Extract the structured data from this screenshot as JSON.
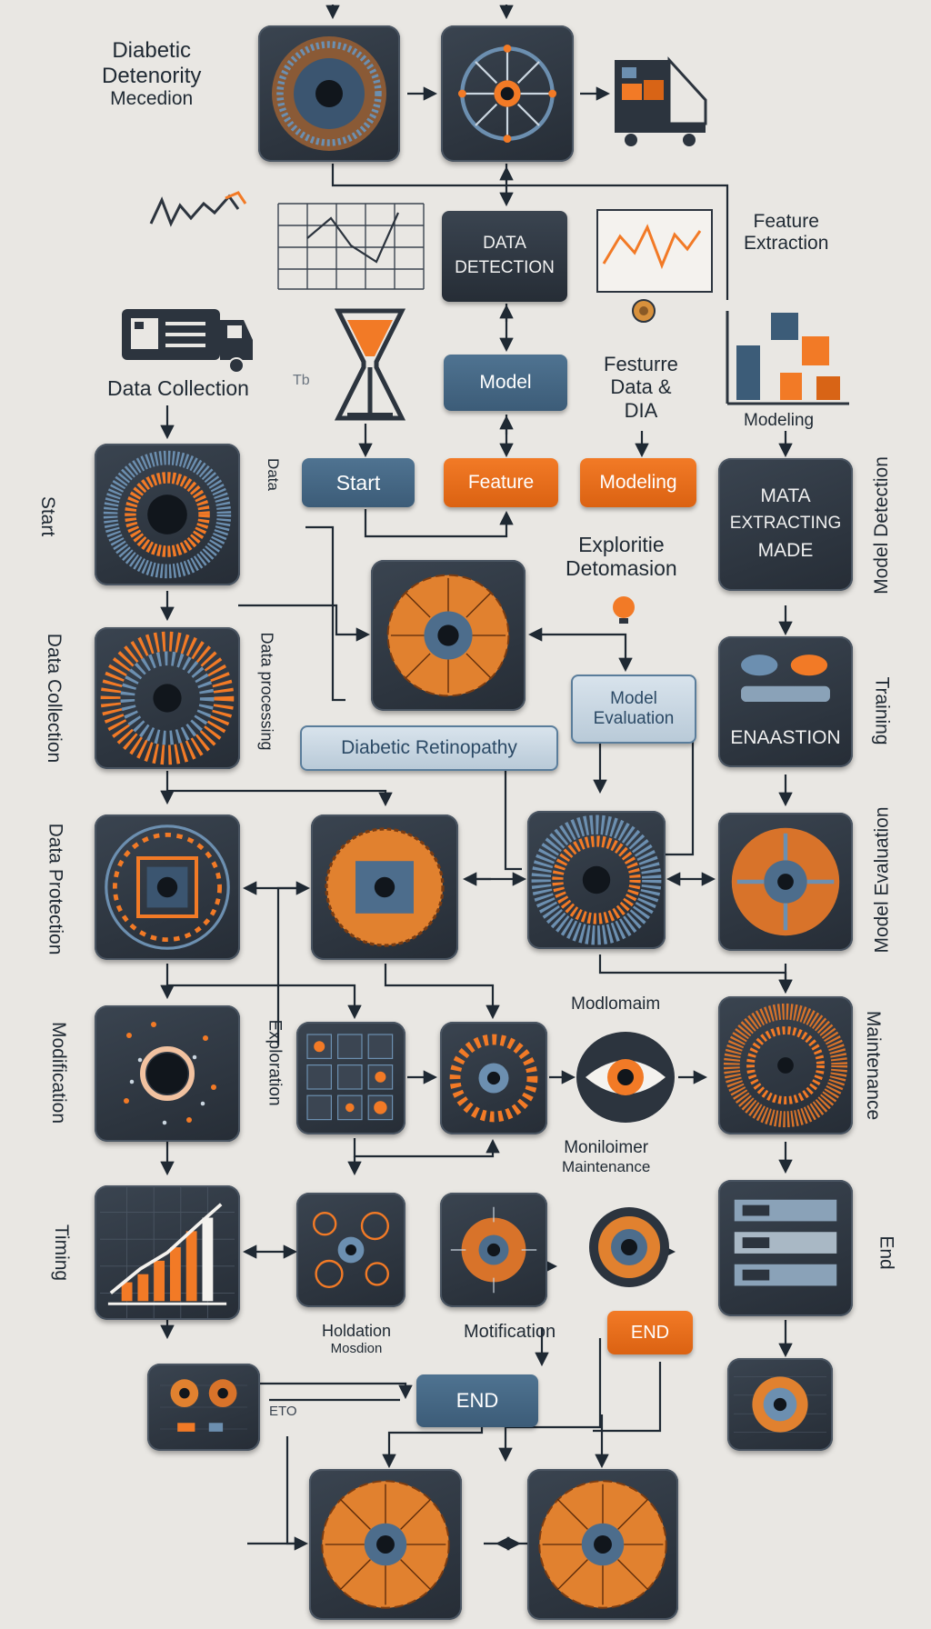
{
  "title": {
    "line1": "Diabetic",
    "line2": "Detenority",
    "line3": "Mecedion"
  },
  "labels": {
    "feature_extraction_l1": "Feature",
    "feature_extraction_l2": "Extraction",
    "data_collection": "Data Collection",
    "feature_data_l1": "Festurre",
    "feature_data_l2": "Data &",
    "feature_data_l3": "DIA",
    "modeling_small": "Modeling",
    "exploratory_l1": "Exploritie",
    "exploratory_l2": "Detomasion",
    "modl_label": "Modlomaim",
    "monitoring_l1": "Moniloimer",
    "monitoring_l2": "Maintenance",
    "holdion_l1": "Holdation",
    "holdion_l2": "Mosdion",
    "modification": "Motification",
    "small_note": "ETO",
    "small_note2": "Tb"
  },
  "vertical_labels": {
    "start": "Start",
    "data": "Data",
    "data_collection": "Data Collection",
    "data_processing": "Data processing",
    "data_protection": "Data Protection",
    "modification": "Modification",
    "exploration": "Exploration",
    "timing": "Timing",
    "model_detection": "Model Detection",
    "training": "Training",
    "model_evaluation": "Model Evaluation",
    "maintenance": "Maintenance",
    "end": "End"
  },
  "buttons": {
    "data_detection_l1": "DATA",
    "data_detection_l2": "DETECTION",
    "model_top": "Model",
    "start": "Start",
    "feature": "Feature",
    "modeling": "Modeling",
    "mata_l1": "MATA",
    "mata_l2": "EXTRACTING",
    "mata_l3": "MADE",
    "model_evaluation_l1": "Model",
    "model_evaluation_l2": "Evaluation",
    "diabetic_retinopathy": "Diabetic Retinopathy",
    "enaastion": "ENAASTION",
    "end_orange": "END",
    "end_blue": "END"
  },
  "colors": {
    "background": "#e9e7e3",
    "tile_dark": "#2c343e",
    "accent_orange": "#f27a26",
    "accent_blue": "#4f7391",
    "wire": "#1f2933"
  }
}
